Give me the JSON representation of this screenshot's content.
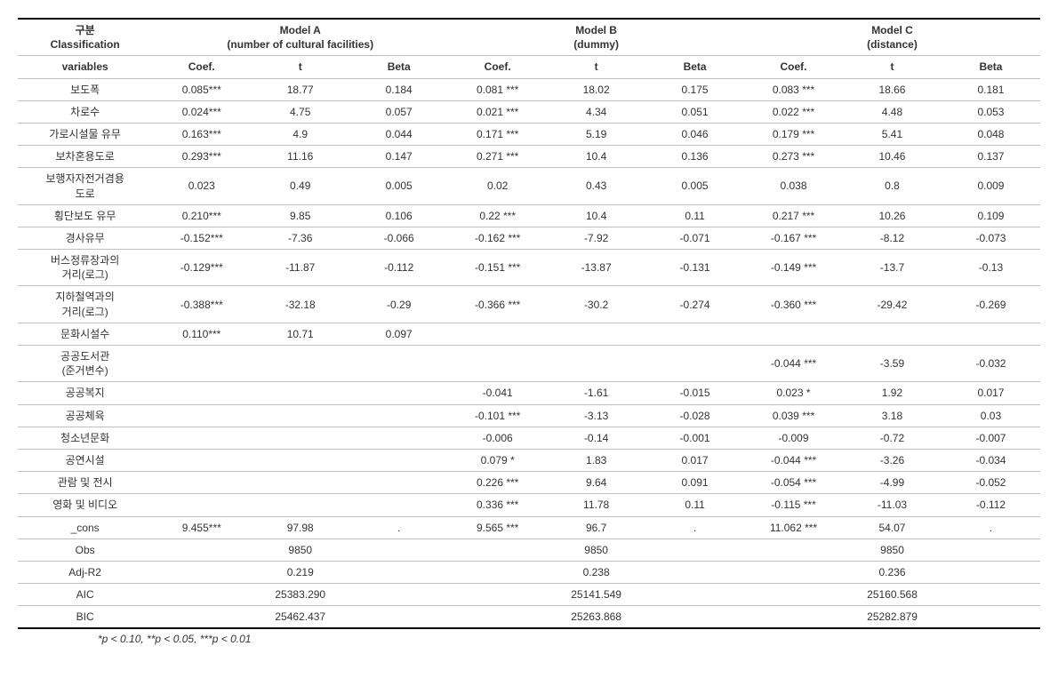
{
  "header": {
    "classification_ko": "구분",
    "classification_en": "Classification",
    "models": [
      {
        "name": "Model A",
        "sub": "(number of cultural facilities)"
      },
      {
        "name": "Model B",
        "sub": "(dummy)"
      },
      {
        "name": "Model C",
        "sub": "(distance)"
      }
    ],
    "variables_label": "variables",
    "sub_cols": [
      "Coef.",
      "t",
      "Beta"
    ]
  },
  "rows": [
    {
      "label": [
        "보도폭"
      ],
      "A": [
        "0.085***",
        "18.77",
        "0.184"
      ],
      "B": [
        "0.081 ***",
        "18.02",
        "0.175"
      ],
      "C": [
        "0.083 ***",
        "18.66",
        "0.181"
      ]
    },
    {
      "label": [
        "차로수"
      ],
      "A": [
        "0.024***",
        "4.75",
        "0.057"
      ],
      "B": [
        "0.021 ***",
        "4.34",
        "0.051"
      ],
      "C": [
        "0.022 ***",
        "4.48",
        "0.053"
      ]
    },
    {
      "label": [
        "가로시설물 유무"
      ],
      "A": [
        "0.163***",
        "4.9",
        "0.044"
      ],
      "B": [
        "0.171 ***",
        "5.19",
        "0.046"
      ],
      "C": [
        "0.179 ***",
        "5.41",
        "0.048"
      ]
    },
    {
      "label": [
        "보차혼용도로"
      ],
      "A": [
        "0.293***",
        "11.16",
        "0.147"
      ],
      "B": [
        "0.271 ***",
        "10.4",
        "0.136"
      ],
      "C": [
        "0.273 ***",
        "10.46",
        "0.137"
      ]
    },
    {
      "label": [
        "보행자자전거겸용",
        "도로"
      ],
      "A": [
        "0.023",
        "0.49",
        "0.005"
      ],
      "B": [
        "0.02",
        "0.43",
        "0.005"
      ],
      "C": [
        "0.038",
        "0.8",
        "0.009"
      ]
    },
    {
      "label": [
        "횡단보도 유무"
      ],
      "A": [
        "0.210***",
        "9.85",
        "0.106"
      ],
      "B": [
        "0.22 ***",
        "10.4",
        "0.11"
      ],
      "C": [
        "0.217 ***",
        "10.26",
        "0.109"
      ]
    },
    {
      "label": [
        "경사유무"
      ],
      "A": [
        "-0.152***",
        "-7.36",
        "-0.066"
      ],
      "B": [
        "-0.162 ***",
        "-7.92",
        "-0.071"
      ],
      "C": [
        "-0.167 ***",
        "-8.12",
        "-0.073"
      ]
    },
    {
      "label": [
        "버스정류장과의",
        "거리(로그)"
      ],
      "A": [
        "-0.129***",
        "-11.87",
        "-0.112"
      ],
      "B": [
        "-0.151 ***",
        "-13.87",
        "-0.131"
      ],
      "C": [
        "-0.149 ***",
        "-13.7",
        "-0.13"
      ]
    },
    {
      "label": [
        "지하철역과의",
        "거리(로그)"
      ],
      "A": [
        "-0.388***",
        "-32.18",
        "-0.29"
      ],
      "B": [
        "-0.366 ***",
        "-30.2",
        "-0.274"
      ],
      "C": [
        "-0.360 ***",
        "-29.42",
        "-0.269"
      ]
    },
    {
      "label": [
        "문화시설수"
      ],
      "A": [
        "0.110***",
        "10.71",
        "0.097"
      ],
      "B": [
        "",
        "",
        ""
      ],
      "C": [
        "",
        "",
        ""
      ]
    },
    {
      "label": [
        "공공도서관",
        "(준거변수)"
      ],
      "A": [
        "",
        "",
        ""
      ],
      "B": [
        "",
        "",
        ""
      ],
      "C": [
        "-0.044 ***",
        "-3.59",
        "-0.032"
      ]
    },
    {
      "label": [
        "공공복지"
      ],
      "A": [
        "",
        "",
        ""
      ],
      "B": [
        "-0.041",
        "-1.61",
        "-0.015"
      ],
      "C": [
        "0.023 *",
        "1.92",
        "0.017"
      ]
    },
    {
      "label": [
        "공공체육"
      ],
      "A": [
        "",
        "",
        ""
      ],
      "B": [
        "-0.101 ***",
        "-3.13",
        "-0.028"
      ],
      "C": [
        "0.039 ***",
        "3.18",
        "0.03"
      ]
    },
    {
      "label": [
        "청소년문화"
      ],
      "A": [
        "",
        "",
        ""
      ],
      "B": [
        "-0.006",
        "-0.14",
        "-0.001"
      ],
      "C": [
        "-0.009",
        "-0.72",
        "-0.007"
      ]
    },
    {
      "label": [
        "공연시설"
      ],
      "A": [
        "",
        "",
        ""
      ],
      "B": [
        "0.079 *",
        "1.83",
        "0.017"
      ],
      "C": [
        "-0.044 ***",
        "-3.26",
        "-0.034"
      ]
    },
    {
      "label": [
        "관람 및 전시"
      ],
      "A": [
        "",
        "",
        ""
      ],
      "B": [
        "0.226 ***",
        "9.64",
        "0.091"
      ],
      "C": [
        "-0.054 ***",
        "-4.99",
        "-0.052"
      ]
    },
    {
      "label": [
        "영화 및 비디오"
      ],
      "A": [
        "",
        "",
        ""
      ],
      "B": [
        "0.336 ***",
        "11.78",
        "0.11"
      ],
      "C": [
        "-0.115 ***",
        "-11.03",
        "-0.112"
      ]
    },
    {
      "label": [
        "_cons"
      ],
      "A": [
        "9.455***",
        "97.98",
        "."
      ],
      "B": [
        "9.565 ***",
        "96.7",
        "."
      ],
      "C": [
        "11.062 ***",
        "54.07",
        "."
      ]
    }
  ],
  "summary": [
    {
      "label": "Obs",
      "A": "9850",
      "B": "9850",
      "C": "9850"
    },
    {
      "label": "Adj-R2",
      "A": "0.219",
      "B": "0.238",
      "C": "0.236"
    },
    {
      "label": "AIC",
      "A": "25383.290",
      "B": "25141.549",
      "C": "25160.568"
    },
    {
      "label": "BIC",
      "A": "25462.437",
      "B": "25263.868",
      "C": "25282.879"
    }
  ],
  "footnote": "*p < 0.10, **p < 0.05, ***p < 0.01"
}
